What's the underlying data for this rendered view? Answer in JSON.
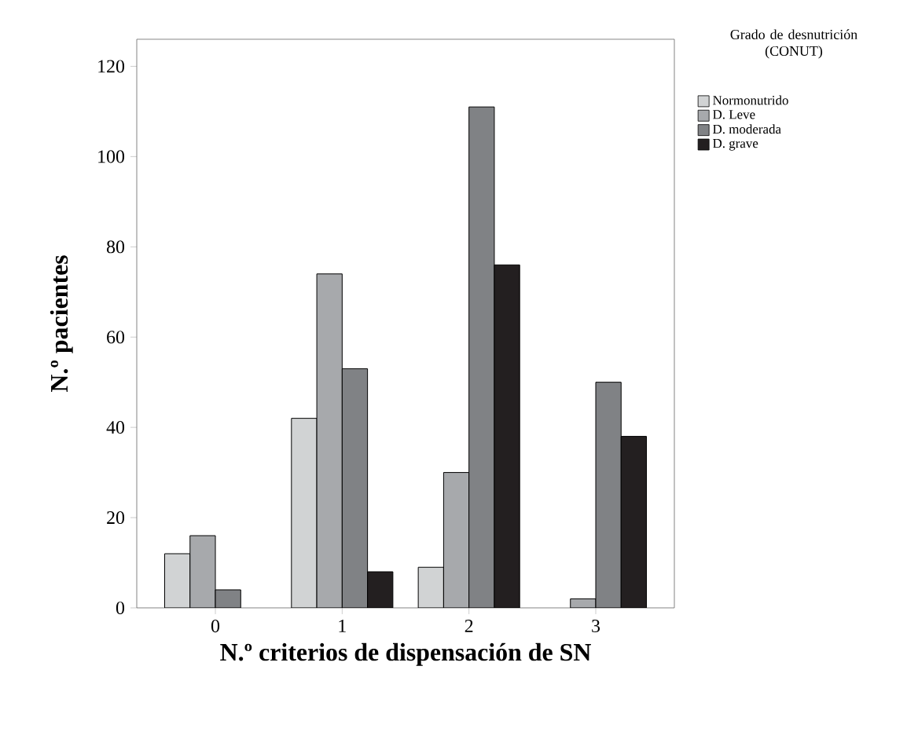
{
  "chart_data": {
    "type": "bar",
    "xlabel": "N.º criterios de dispensación de SN",
    "ylabel": "N.º pacientes",
    "legend_title": "Grado de desnutrición (CONUT)",
    "categories": [
      "0",
      "1",
      "2",
      "3"
    ],
    "series": [
      {
        "name": "Normonutrido",
        "color": "#d1d3d4",
        "values": [
          12,
          42,
          9,
          null
        ]
      },
      {
        "name": "D. Leve",
        "color": "#a7a9ac",
        "values": [
          16,
          74,
          30,
          2
        ]
      },
      {
        "name": "D. moderada",
        "color": "#808285",
        "values": [
          4,
          53,
          111,
          50
        ]
      },
      {
        "name": "D. grave",
        "color": "#231f20",
        "values": [
          null,
          8,
          76,
          38
        ]
      }
    ],
    "ylim": [
      0,
      126
    ],
    "yticks": [
      0,
      20,
      40,
      60,
      80,
      100,
      120
    ],
    "legend": "top right",
    "grid": false
  }
}
